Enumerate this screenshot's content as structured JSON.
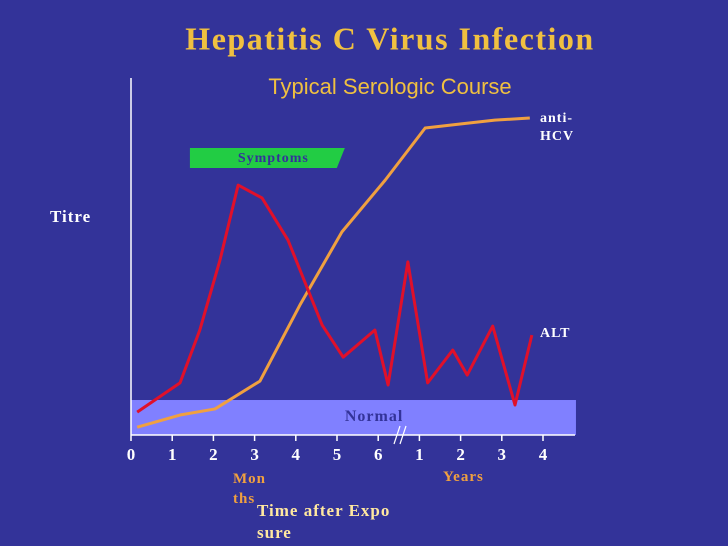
{
  "chart_data": {
    "type": "line",
    "title": "Hepatitis C Virus Infection",
    "subtitle": "Typical Serologic Course",
    "y_label": "Titre",
    "x_label": "Time after Exposure",
    "x_unit_labels": [
      "Months",
      "Years"
    ],
    "xlim": [
      0,
      10.8
    ],
    "ylim": [
      0,
      100
    ],
    "xticks": [
      0,
      1,
      2,
      3,
      4,
      5,
      6,
      {
        "value": 7,
        "label": "1"
      },
      {
        "value": 8,
        "label": "2"
      },
      {
        "value": 9,
        "label": "3"
      },
      {
        "value": 10,
        "label": "4"
      }
    ],
    "normal_range": {
      "label": "Normal",
      "y": [
        0,
        9.8
      ]
    },
    "symptoms": {
      "label": "Symptoms",
      "x": [
        1.43,
        5.19
      ]
    },
    "series": [
      {
        "name": "anti-HCV",
        "color": "#f0a040",
        "x": [
          0.15,
          1.19,
          2.04,
          3.13,
          4.1,
          5.12,
          6.17,
          7.14,
          7.99,
          8.83,
          9.68
        ],
        "values": [
          2.2,
          5.6,
          7.3,
          15.1,
          36.4,
          56.9,
          71.4,
          86.0,
          87.1,
          88.2,
          88.8
        ]
      },
      {
        "name": "ALT",
        "color": "#e0102a",
        "x": [
          0.15,
          1.19,
          1.67,
          2.16,
          2.6,
          3.18,
          3.81,
          4.64,
          5.15,
          5.92,
          6.24,
          6.72,
          7.2,
          7.81,
          8.16,
          8.78,
          9.32,
          9.73
        ],
        "values": [
          6.4,
          14.6,
          29.4,
          49.0,
          70.0,
          66.4,
          54.6,
          30.8,
          21.8,
          29.4,
          14.0,
          48.5,
          14.6,
          23.8,
          16.8,
          30.5,
          8.4,
          28.0
        ]
      }
    ]
  }
}
